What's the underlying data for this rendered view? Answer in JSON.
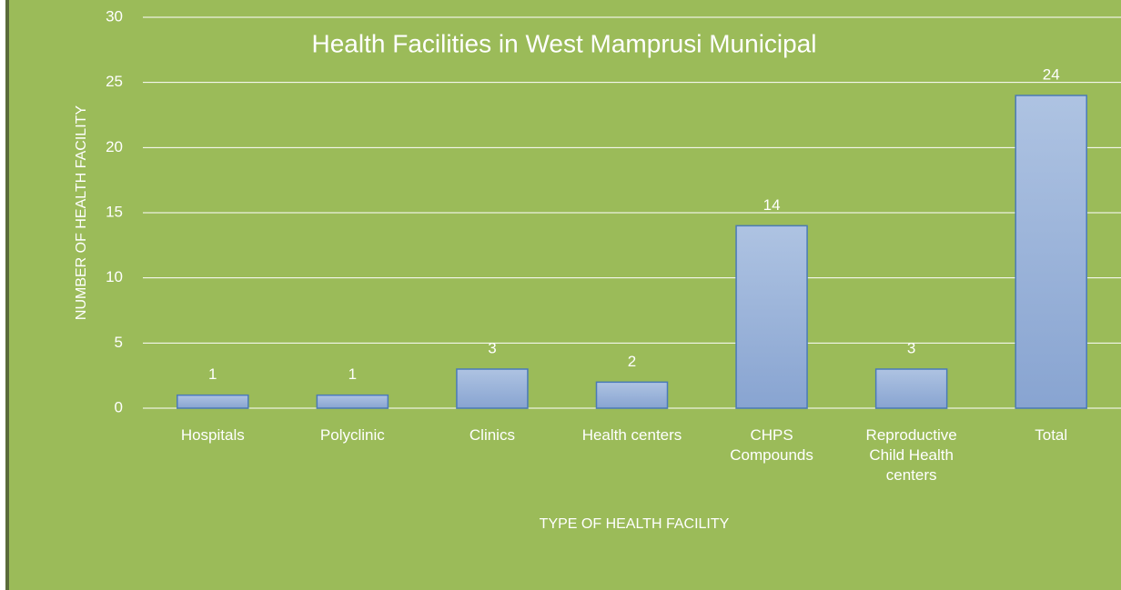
{
  "chart_data": {
    "type": "bar",
    "title": "Health Facilities in West Mamprusi Municipal",
    "x_label": "TYPE OF HEALTH FACILITY",
    "y_label": "NUMBER OF HEALTH FACILITY",
    "categories": [
      "Hospitals",
      "Polyclinic",
      "Clinics",
      "Health centers",
      "CHPS Compounds",
      "Reproductive Child Health centers",
      "Total"
    ],
    "values": [
      1,
      1,
      3,
      2,
      14,
      3,
      24
    ],
    "color": "#95b0d9",
    "ylim": [
      0,
      30
    ],
    "yticks": [
      0,
      5,
      10,
      15,
      20,
      25,
      30
    ],
    "grid": true
  }
}
